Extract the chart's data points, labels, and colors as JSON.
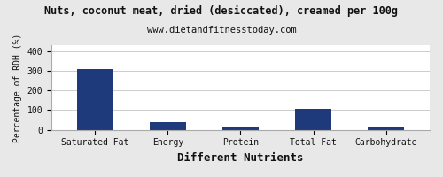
{
  "title": "Nuts, coconut meat, dried (desiccated), creamed per 100g",
  "subtitle": "www.dietandfitnesstoday.com",
  "xlabel": "Different Nutrients",
  "ylabel": "Percentage of RDH (%)",
  "categories": [
    "Saturated Fat",
    "Energy",
    "Protein",
    "Total Fat",
    "Carbohydrate"
  ],
  "values": [
    310,
    38,
    10,
    107,
    18
  ],
  "bar_color": "#1F3A7A",
  "ylim": [
    0,
    430
  ],
  "yticks": [
    0,
    100,
    200,
    300,
    400
  ],
  "background_color": "#e8e8e8",
  "plot_bg_color": "#ffffff",
  "title_fontsize": 8.5,
  "subtitle_fontsize": 7.5,
  "xlabel_fontsize": 9,
  "ylabel_fontsize": 7,
  "tick_fontsize": 7,
  "border_color": "#aaaaaa"
}
